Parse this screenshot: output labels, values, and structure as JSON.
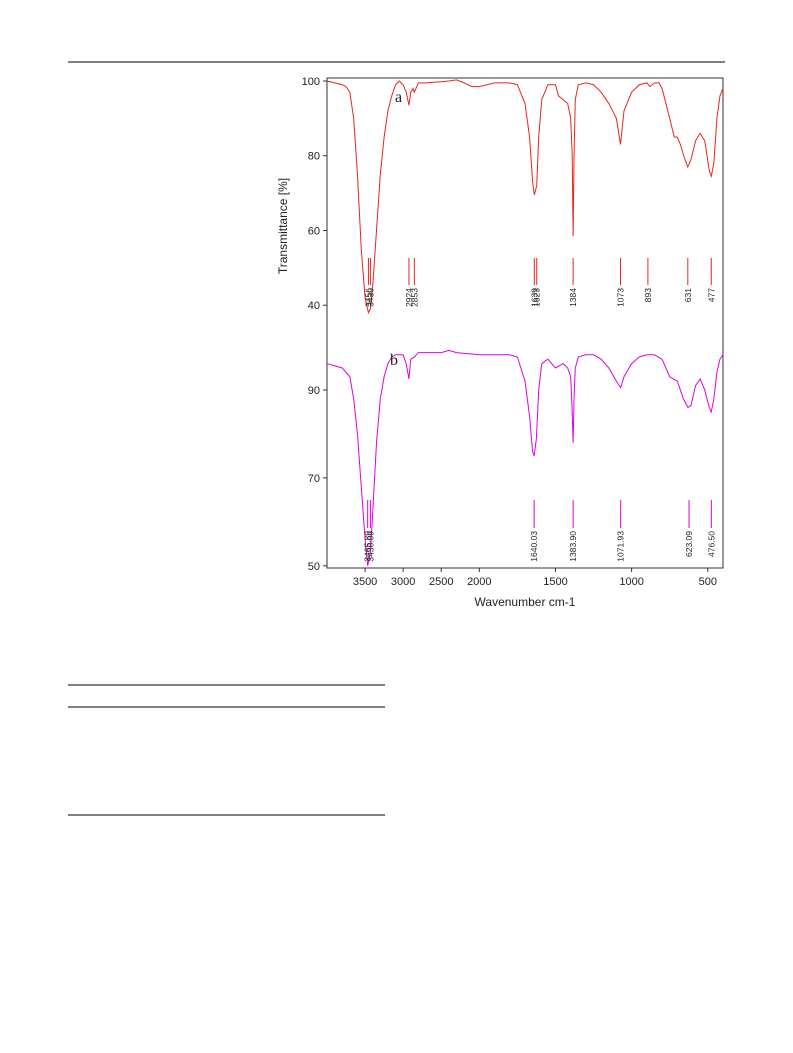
{
  "chart_data": [
    {
      "type": "line",
      "ylabel": "Transmittance [%]",
      "label": "a",
      "xlim": [
        4000,
        400
      ],
      "x_break": 2000,
      "x_break_ratio": 2,
      "ylim": [
        35.5,
        100.8
      ],
      "yticks": [
        40,
        60,
        80,
        100
      ],
      "x": [
        4000,
        3900,
        3800,
        3750,
        3700,
        3650,
        3600,
        3550,
        3500,
        3456,
        3430,
        3400,
        3350,
        3300,
        3250,
        3200,
        3150,
        3100,
        3050,
        3000,
        2960,
        2924,
        2900,
        2870,
        2853,
        2800,
        2700,
        2500,
        2400,
        2300,
        2200,
        2100,
        2000,
        1900,
        1800,
        1750,
        1700,
        1670,
        1650,
        1639,
        1623,
        1610,
        1590,
        1550,
        1500,
        1480,
        1450,
        1420,
        1400,
        1390,
        1384,
        1378,
        1370,
        1350,
        1300,
        1250,
        1200,
        1150,
        1100,
        1073,
        1050,
        1000,
        950,
        900,
        880,
        850,
        820,
        800,
        750,
        720,
        700,
        680,
        650,
        631,
        610,
        580,
        550,
        520,
        490,
        477,
        460,
        440,
        420,
        400
      ],
      "series": [
        {
          "color": "#e8251b",
          "values": [
            100,
            99.5,
            99,
            98.5,
            97,
            90,
            75,
            55,
            42,
            38,
            39,
            45,
            60,
            75,
            85,
            92,
            96,
            99,
            100,
            99,
            97,
            93.5,
            97,
            98,
            97,
            99.5,
            99.5,
            99.8,
            100,
            100.3,
            99.5,
            98.5,
            98.5,
            99.5,
            99.5,
            99,
            94,
            85,
            73,
            69.5,
            72,
            85,
            95,
            99,
            99,
            96,
            95,
            94,
            90,
            80,
            58.5,
            80,
            95,
            99,
            99.5,
            99,
            97,
            94,
            90,
            83,
            92,
            97,
            99,
            99.5,
            98.5,
            99.5,
            99.5,
            98,
            90,
            85,
            85,
            83,
            79,
            77,
            79,
            84,
            86,
            84,
            76,
            74.5,
            78,
            90,
            96,
            98
          ]
        }
      ],
      "peaks": [
        3456,
        3430,
        2924,
        2853,
        1639,
        1623,
        1384,
        1073,
        893,
        631,
        477
      ]
    },
    {
      "type": "line",
      "label": "b",
      "xlabel": "Wavenumber cm-1",
      "xlim": [
        4000,
        400
      ],
      "x_break": 2000,
      "x_break_ratio": 2,
      "xticks": [
        3500,
        3000,
        2500,
        2000,
        1500,
        1000,
        500
      ],
      "ylim": [
        49.5,
        102.5
      ],
      "yticks": [
        50,
        70,
        90
      ],
      "x": [
        4000,
        3900,
        3800,
        3750,
        3700,
        3650,
        3600,
        3550,
        3500,
        3466,
        3430,
        3400,
        3350,
        3300,
        3250,
        3200,
        3150,
        3100,
        3000,
        2960,
        2924,
        2900,
        2853,
        2800,
        2500,
        2400,
        2300,
        2000,
        1800,
        1750,
        1700,
        1670,
        1650,
        1640,
        1625,
        1610,
        1590,
        1550,
        1500,
        1450,
        1420,
        1400,
        1390,
        1384,
        1378,
        1370,
        1350,
        1300,
        1250,
        1200,
        1150,
        1100,
        1072,
        1050,
        1000,
        950,
        900,
        850,
        800,
        750,
        700,
        660,
        630,
        610,
        580,
        550,
        520,
        490,
        477,
        460,
        440,
        420,
        400
      ],
      "series": [
        {
          "color": "#e000e0",
          "values": [
            96,
            95.5,
            95,
            94,
            93,
            88,
            80,
            68,
            56,
            50,
            53,
            62,
            78,
            88,
            93,
            96,
            97.5,
            98,
            98,
            96,
            92.5,
            97,
            97.5,
            98.5,
            98.5,
            99,
            98.5,
            98,
            98,
            97.5,
            92,
            84,
            76,
            75,
            79,
            90,
            96,
            97,
            95,
            96,
            95,
            93,
            85,
            78,
            88,
            95,
            97.5,
            98,
            98,
            97,
            95,
            92,
            90.5,
            93,
            96,
            97.5,
            98,
            98,
            97,
            93,
            92,
            88,
            86,
            86.5,
            91,
            92.5,
            90,
            86,
            85,
            88,
            94,
            97,
            98
          ]
        }
      ],
      "peaks": [
        3465.89,
        3430.09,
        1640.03,
        {
          "value": 1383.9,
          "label": "1383.90"
        },
        1071.93,
        623.09,
        {
          "value": 476.5,
          "label": "476.50"
        }
      ]
    }
  ]
}
